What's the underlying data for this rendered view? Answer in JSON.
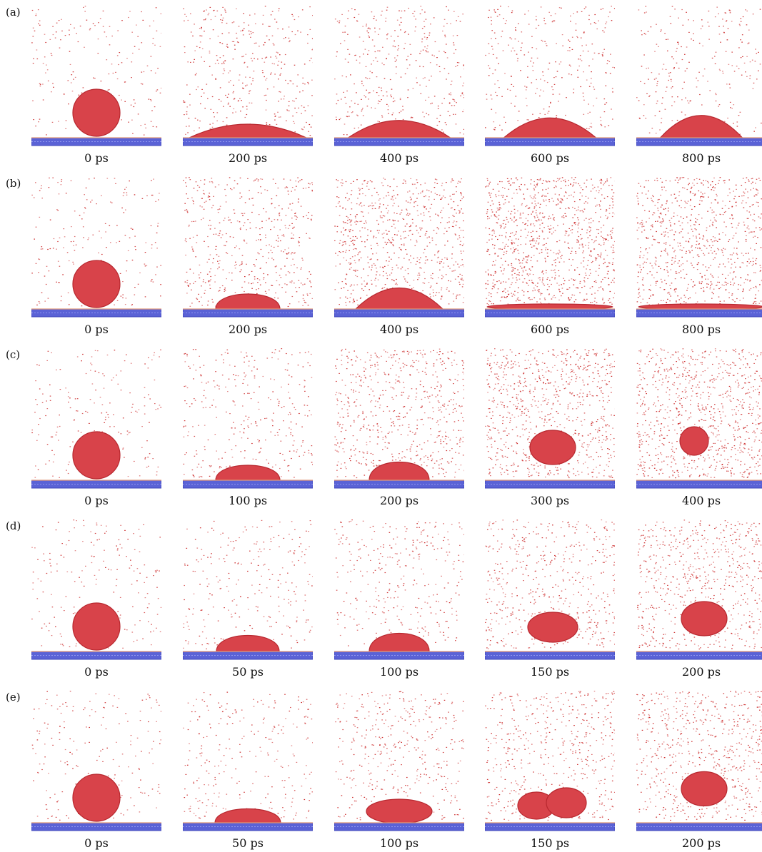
{
  "rows": [
    {
      "label": "(a)",
      "frames": [
        {
          "time": "0 ps",
          "state": {
            "shape": "sphere",
            "spread": 0,
            "vapor": 0.6,
            "lift": 0
          }
        },
        {
          "time": "200 ps",
          "state": {
            "shape": "cap",
            "spread": 0.6,
            "vapor": 1.2,
            "lift": 0
          }
        },
        {
          "time": "400 ps",
          "state": {
            "shape": "cap",
            "spread": 0.45,
            "vapor": 1.2,
            "lift": 0
          }
        },
        {
          "time": "600 ps",
          "state": {
            "shape": "cap",
            "spread": 0.35,
            "vapor": 1.0,
            "lift": 0
          }
        },
        {
          "time": "800 ps",
          "state": {
            "shape": "cap",
            "spread": 0.25,
            "vapor": 0.8,
            "lift": 0
          }
        }
      ]
    },
    {
      "label": "(b)",
      "frames": [
        {
          "time": "0 ps",
          "state": {
            "shape": "sphere",
            "spread": 0,
            "vapor": 0.6,
            "lift": 0
          }
        },
        {
          "time": "200 ps",
          "state": {
            "shape": "dome",
            "spread": 0.5,
            "vapor": 1.6,
            "lift": 0
          }
        },
        {
          "time": "400 ps",
          "state": {
            "shape": "cap",
            "spread": 0.3,
            "vapor": 2.4,
            "lift": 0
          }
        },
        {
          "time": "600 ps",
          "state": {
            "shape": "film",
            "spread": 1,
            "vapor": 3.2,
            "lift": 0
          }
        },
        {
          "time": "800 ps",
          "state": {
            "shape": "film",
            "spread": 1,
            "vapor": 2.6,
            "lift": 0
          }
        }
      ]
    },
    {
      "label": "(c)",
      "frames": [
        {
          "time": "0 ps",
          "state": {
            "shape": "sphere",
            "spread": 0,
            "vapor": 0.6,
            "lift": 0
          }
        },
        {
          "time": "100 ps",
          "state": {
            "shape": "dome",
            "spread": 0.5,
            "vapor": 1.0,
            "lift": 0
          }
        },
        {
          "time": "200 ps",
          "state": {
            "shape": "dome",
            "spread": 0.35,
            "vapor": 2.0,
            "lift": 0
          }
        },
        {
          "time": "300 ps",
          "state": {
            "shape": "blob",
            "spread": 0.2,
            "vapor": 2.6,
            "lift": 0.2
          }
        },
        {
          "time": "400 ps",
          "state": {
            "shape": "small",
            "spread": 0,
            "vapor": 2.8,
            "lift": 0.55
          }
        }
      ]
    },
    {
      "label": "(d)",
      "frames": [
        {
          "time": "0 ps",
          "state": {
            "shape": "sphere",
            "spread": 0,
            "vapor": 0.6,
            "lift": 0
          }
        },
        {
          "time": "50 ps",
          "state": {
            "shape": "dome",
            "spread": 0.45,
            "vapor": 0.8,
            "lift": 0
          }
        },
        {
          "time": "100 ps",
          "state": {
            "shape": "dome",
            "spread": 0.35,
            "vapor": 1.0,
            "lift": 0
          }
        },
        {
          "time": "150 ps",
          "state": {
            "shape": "blob",
            "spread": 0.35,
            "vapor": 1.6,
            "lift": 0.05
          }
        },
        {
          "time": "200 ps",
          "state": {
            "shape": "blob",
            "spread": 0.2,
            "vapor": 2.0,
            "lift": 0.2
          }
        }
      ]
    },
    {
      "label": "(e)",
      "frames": [
        {
          "time": "0 ps",
          "state": {
            "shape": "sphere",
            "spread": 0,
            "vapor": 0.6,
            "lift": 0
          }
        },
        {
          "time": "50 ps",
          "state": {
            "shape": "dome",
            "spread": 0.55,
            "vapor": 0.8,
            "lift": 0
          }
        },
        {
          "time": "100 ps",
          "state": {
            "shape": "flat",
            "spread": 0.5,
            "vapor": 1.2,
            "lift": 0
          }
        },
        {
          "time": "150 ps",
          "state": {
            "shape": "double",
            "spread": 0.4,
            "vapor": 1.6,
            "lift": 0.05
          }
        },
        {
          "time": "200 ps",
          "state": {
            "shape": "blob",
            "spread": 0.2,
            "vapor": 2.0,
            "lift": 0.22
          }
        }
      ]
    }
  ],
  "colors": {
    "droplet": "#d8434a",
    "droplet_dark": "#b8282f",
    "vapor": "#cc2a2a",
    "substrate": "#5a62d6",
    "substrate_edge": "#3d44b8",
    "interface": "#e29a7a"
  }
}
